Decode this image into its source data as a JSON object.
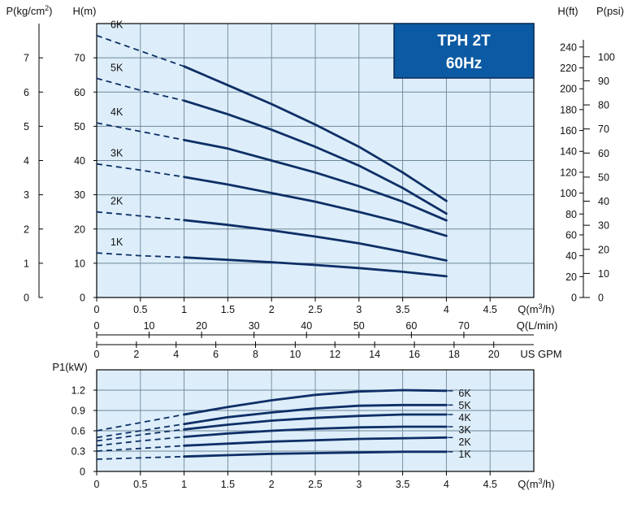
{
  "badge": {
    "line1": "TPH 2T",
    "line2": "60Hz",
    "color": "#0b5aa3"
  },
  "colors": {
    "plot_bg": "#ddeefa",
    "grid": "#6f8798",
    "curve": "#0e2f66",
    "axis": "#000000"
  },
  "chart_data": [
    {
      "type": "line",
      "panel": "head",
      "xlim": [
        0,
        5
      ],
      "ylim": [
        0,
        80
      ],
      "x_ticks": [
        "0",
        "0.5",
        "1",
        "1.5",
        "2",
        "2.5",
        "3",
        "3.5",
        "4",
        "4.5"
      ],
      "x_tick_values": [
        0,
        0.5,
        1,
        1.5,
        2,
        2.5,
        3,
        3.5,
        4,
        4.5
      ],
      "x_label": "Q(m³/h)",
      "y_ticks": [
        "0",
        "10",
        "20",
        "30",
        "40",
        "50",
        "60",
        "70"
      ],
      "y_tick_values": [
        0,
        10,
        20,
        30,
        40,
        50,
        60,
        70
      ],
      "y_label": "H(m)",
      "secondary_axes": {
        "pressure_left": {
          "label": "P(kg/cm²)",
          "ticks": [
            "0",
            "1",
            "2",
            "3",
            "4",
            "5",
            "6",
            "7"
          ],
          "values": [
            0,
            1,
            2,
            3,
            4,
            5,
            6,
            7
          ],
          "to_head": 10
        },
        "head_ft": {
          "label": "H(ft)",
          "ticks": [
            "0",
            "20",
            "40",
            "60",
            "80",
            "100",
            "120",
            "140",
            "160",
            "180",
            "200",
            "220",
            "240"
          ],
          "values": [
            0,
            20,
            40,
            60,
            80,
            100,
            120,
            140,
            160,
            180,
            200,
            220,
            240
          ],
          "to_head": 0.3048
        },
        "pressure_psi": {
          "label": "P(psi)",
          "ticks": [
            "0",
            "10",
            "20",
            "30",
            "40",
            "50",
            "60",
            "70",
            "80",
            "90",
            "100"
          ],
          "values": [
            0,
            10,
            20,
            30,
            40,
            50,
            60,
            70,
            80,
            90,
            100
          ],
          "to_head": 0.7031
        },
        "flow_lmin": {
          "label": "Q(L/min)",
          "ticks": [
            "0",
            "10",
            "20",
            "30",
            "40",
            "50",
            "60",
            "70"
          ],
          "values": [
            0,
            10,
            20,
            30,
            40,
            50,
            60,
            70
          ],
          "to_m3h": 0.06
        },
        "flow_usgpm": {
          "label": "US GPM",
          "ticks": [
            "0",
            "2",
            "4",
            "6",
            "8",
            "10",
            "12",
            "14",
            "16",
            "18",
            "20"
          ],
          "values": [
            0,
            2,
            4,
            6,
            8,
            10,
            12,
            14,
            16,
            18,
            20
          ],
          "to_m3h": 0.2271
        }
      },
      "dashed_until_x": 1,
      "series": [
        {
          "name": "6K",
          "x": [
            0,
            0.5,
            1,
            1.5,
            2,
            2.5,
            3,
            3.5,
            4
          ],
          "y": [
            76.5,
            72,
            67.5,
            62,
            56.5,
            50.5,
            44,
            36.5,
            28.2
          ]
        },
        {
          "name": "5K",
          "x": [
            0,
            0.5,
            1,
            1.5,
            2,
            2.5,
            3,
            3.5,
            4
          ],
          "y": [
            64,
            60.5,
            57.5,
            53.5,
            49,
            44,
            38.5,
            32,
            24.5
          ]
        },
        {
          "name": "4K",
          "x": [
            0,
            0.5,
            1,
            1.5,
            2,
            2.5,
            3,
            3.5,
            4
          ],
          "y": [
            51,
            48.5,
            46,
            43.5,
            40,
            36.5,
            32.5,
            28,
            22.5
          ]
        },
        {
          "name": "3K",
          "x": [
            0,
            0.5,
            1,
            1.5,
            2,
            2.5,
            3,
            3.5,
            4
          ],
          "y": [
            39,
            37.2,
            35.2,
            33,
            30.5,
            28,
            25,
            21.8,
            18
          ]
        },
        {
          "name": "2K",
          "x": [
            0,
            0.5,
            1,
            1.5,
            2,
            2.5,
            3,
            3.5,
            4
          ],
          "y": [
            25,
            23.8,
            22.6,
            21.2,
            19.6,
            17.8,
            15.8,
            13.4,
            10.8
          ]
        },
        {
          "name": "1K",
          "x": [
            0,
            0.5,
            1,
            1.5,
            2,
            2.5,
            3,
            3.5,
            4
          ],
          "y": [
            13,
            12.2,
            11.7,
            11,
            10.3,
            9.5,
            8.6,
            7.5,
            6.2
          ]
        }
      ]
    },
    {
      "type": "line",
      "panel": "power",
      "xlim": [
        0,
        5
      ],
      "ylim": [
        0,
        1.5
      ],
      "x_ticks": [
        "0",
        "0.5",
        "1",
        "1.5",
        "2",
        "2.5",
        "3",
        "3.5",
        "4",
        "4.5"
      ],
      "x_tick_values": [
        0,
        0.5,
        1,
        1.5,
        2,
        2.5,
        3,
        3.5,
        4,
        4.5
      ],
      "x_label": "Q(m³/h)",
      "y_ticks": [
        "0",
        "0.3",
        "0.6",
        "0.9",
        "1.2"
      ],
      "y_tick_values": [
        0,
        0.3,
        0.6,
        0.9,
        1.2
      ],
      "y_label": "P1(kW)",
      "dashed_until_x": 1,
      "series": [
        {
          "name": "6K",
          "x": [
            0,
            0.5,
            1,
            1.5,
            2,
            2.5,
            3,
            3.5,
            4
          ],
          "y": [
            0.6,
            0.72,
            0.84,
            0.95,
            1.05,
            1.13,
            1.18,
            1.2,
            1.19
          ]
        },
        {
          "name": "5K",
          "x": [
            0,
            0.5,
            1,
            1.5,
            2,
            2.5,
            3,
            3.5,
            4
          ],
          "y": [
            0.5,
            0.6,
            0.7,
            0.8,
            0.87,
            0.93,
            0.97,
            0.98,
            0.98
          ]
        },
        {
          "name": "4K",
          "x": [
            0,
            0.5,
            1,
            1.5,
            2,
            2.5,
            3,
            3.5,
            4
          ],
          "y": [
            0.45,
            0.54,
            0.62,
            0.69,
            0.75,
            0.79,
            0.82,
            0.84,
            0.84
          ]
        },
        {
          "name": "3K",
          "x": [
            0,
            0.5,
            1,
            1.5,
            2,
            2.5,
            3,
            3.5,
            4
          ],
          "y": [
            0.38,
            0.45,
            0.51,
            0.56,
            0.6,
            0.63,
            0.65,
            0.66,
            0.66
          ]
        },
        {
          "name": "2K",
          "x": [
            0,
            0.5,
            1,
            1.5,
            2,
            2.5,
            3,
            3.5,
            4
          ],
          "y": [
            0.3,
            0.34,
            0.38,
            0.41,
            0.44,
            0.46,
            0.48,
            0.49,
            0.5
          ]
        },
        {
          "name": "1K",
          "x": [
            0,
            0.5,
            1,
            1.5,
            2,
            2.5,
            3,
            3.5,
            4
          ],
          "y": [
            0.18,
            0.2,
            0.22,
            0.24,
            0.26,
            0.27,
            0.28,
            0.29,
            0.29
          ]
        }
      ]
    }
  ]
}
